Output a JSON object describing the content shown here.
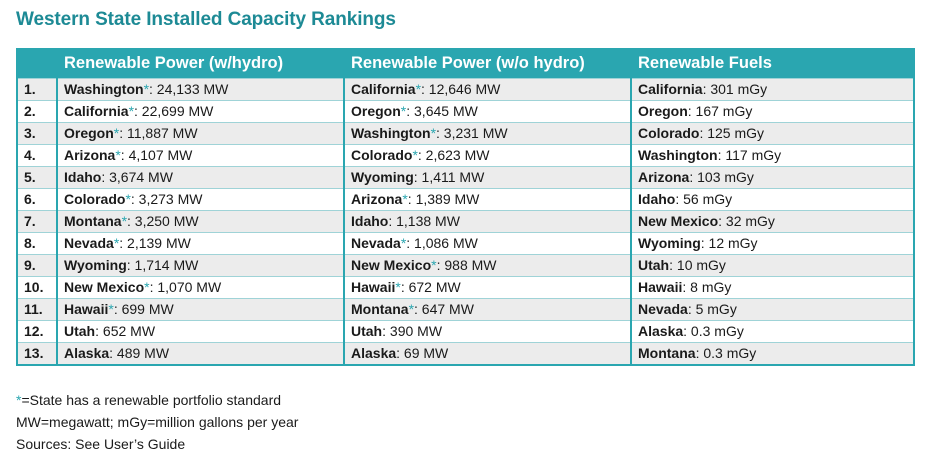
{
  "title": "Western State Installed Capacity Rankings",
  "colors": {
    "accent": "#2aa6b0",
    "title": "#1d8a95",
    "row_shade": "#ececec"
  },
  "headers": [
    "",
    "Renewable Power (w/hydro)",
    "Renewable Power (w/o hydro)",
    "Renewable Fuels"
  ],
  "rows": [
    {
      "rank": "1.",
      "cols": [
        {
          "state": "Washington",
          "star": "*",
          "value": ": 24,133 MW"
        },
        {
          "state": "California",
          "star": "*",
          "value": ": 12,646 MW"
        },
        {
          "state": "California",
          "star": "",
          "value": ": 301 mGy"
        }
      ]
    },
    {
      "rank": "2.",
      "cols": [
        {
          "state": "California",
          "star": "*",
          "value": ": 22,699 MW"
        },
        {
          "state": "Oregon",
          "star": "*",
          "value": ": 3,645 MW"
        },
        {
          "state": "Oregon",
          "star": "",
          "value": ": 167 mGy"
        }
      ]
    },
    {
      "rank": "3.",
      "cols": [
        {
          "state": "Oregon",
          "star": "*",
          "value": ": 11,887 MW"
        },
        {
          "state": "Washington",
          "star": "*",
          "value": ": 3,231 MW"
        },
        {
          "state": "Colorado",
          "star": "",
          "value": ": 125 mGy"
        }
      ]
    },
    {
      "rank": "4.",
      "cols": [
        {
          "state": "Arizona",
          "star": "*",
          "value": ": 4,107 MW"
        },
        {
          "state": "Colorado",
          "star": "*",
          "value": ": 2,623 MW"
        },
        {
          "state": "Washington",
          "star": "",
          "value": ": 117 mGy"
        }
      ]
    },
    {
      "rank": "5.",
      "cols": [
        {
          "state": "Idaho",
          "star": "",
          "value": ": 3,674 MW"
        },
        {
          "state": "Wyoming",
          "star": "",
          "value": ": 1,411 MW"
        },
        {
          "state": "Arizona",
          "star": "",
          "value": ": 103 mGy"
        }
      ]
    },
    {
      "rank": "6.",
      "cols": [
        {
          "state": "Colorado",
          "star": "*",
          "value": ": 3,273 MW"
        },
        {
          "state": "Arizona",
          "star": "*",
          "value": ": 1,389 MW"
        },
        {
          "state": "Idaho",
          "star": "",
          "value": ": 56 mGy"
        }
      ]
    },
    {
      "rank": "7.",
      "cols": [
        {
          "state": "Montana",
          "star": "*",
          "value": ": 3,250 MW"
        },
        {
          "state": "Idaho",
          "star": "",
          "value": ": 1,138 MW"
        },
        {
          "state": "New Mexico",
          "star": "",
          "value": ": 32 mGy"
        }
      ]
    },
    {
      "rank": "8.",
      "cols": [
        {
          "state": "Nevada",
          "star": "*",
          "value": ": 2,139 MW"
        },
        {
          "state": "Nevada",
          "star": "*",
          "value": ": 1,086 MW"
        },
        {
          "state": "Wyoming",
          "star": "",
          "value": ": 12 mGy"
        }
      ]
    },
    {
      "rank": "9.",
      "cols": [
        {
          "state": "Wyoming",
          "star": "",
          "value": ": 1,714 MW"
        },
        {
          "state": "New Mexico",
          "star": "*",
          "value": ": 988 MW"
        },
        {
          "state": "Utah",
          "star": "",
          "value": ": 10 mGy"
        }
      ]
    },
    {
      "rank": "10.",
      "cols": [
        {
          "state": "New Mexico",
          "star": "*",
          "value": ": 1,070 MW"
        },
        {
          "state": "Hawaii",
          "star": "*",
          "value": ": 672 MW"
        },
        {
          "state": "Hawaii",
          "star": "",
          "value": ": 8 mGy"
        }
      ]
    },
    {
      "rank": "11.",
      "cols": [
        {
          "state": "Hawaii",
          "star": "*",
          "value": ": 699 MW"
        },
        {
          "state": "Montana",
          "star": "*",
          "value": ": 647 MW"
        },
        {
          "state": "Nevada",
          "star": "",
          "value": ": 5 mGy"
        }
      ]
    },
    {
      "rank": "12.",
      "cols": [
        {
          "state": "Utah",
          "star": "",
          "value": ": 652 MW"
        },
        {
          "state": "Utah",
          "star": "",
          "value": ": 390 MW"
        },
        {
          "state": "Alaska",
          "star": "",
          "value": ": 0.3 mGy"
        }
      ]
    },
    {
      "rank": "13.",
      "cols": [
        {
          "state": "Alaska",
          "star": "",
          "value": ": 489 MW"
        },
        {
          "state": "Alaska",
          "star": "",
          "value": ": 69 MW"
        },
        {
          "state": "Montana",
          "star": "",
          "value": ": 0.3 mGy"
        }
      ]
    }
  ],
  "notes": {
    "star_symbol": "*",
    "star_text": "=State has a renewable portfolio standard",
    "units": "MW=megawatt; mGy=million gallons per year",
    "sources": "Sources: See User’s Guide"
  }
}
